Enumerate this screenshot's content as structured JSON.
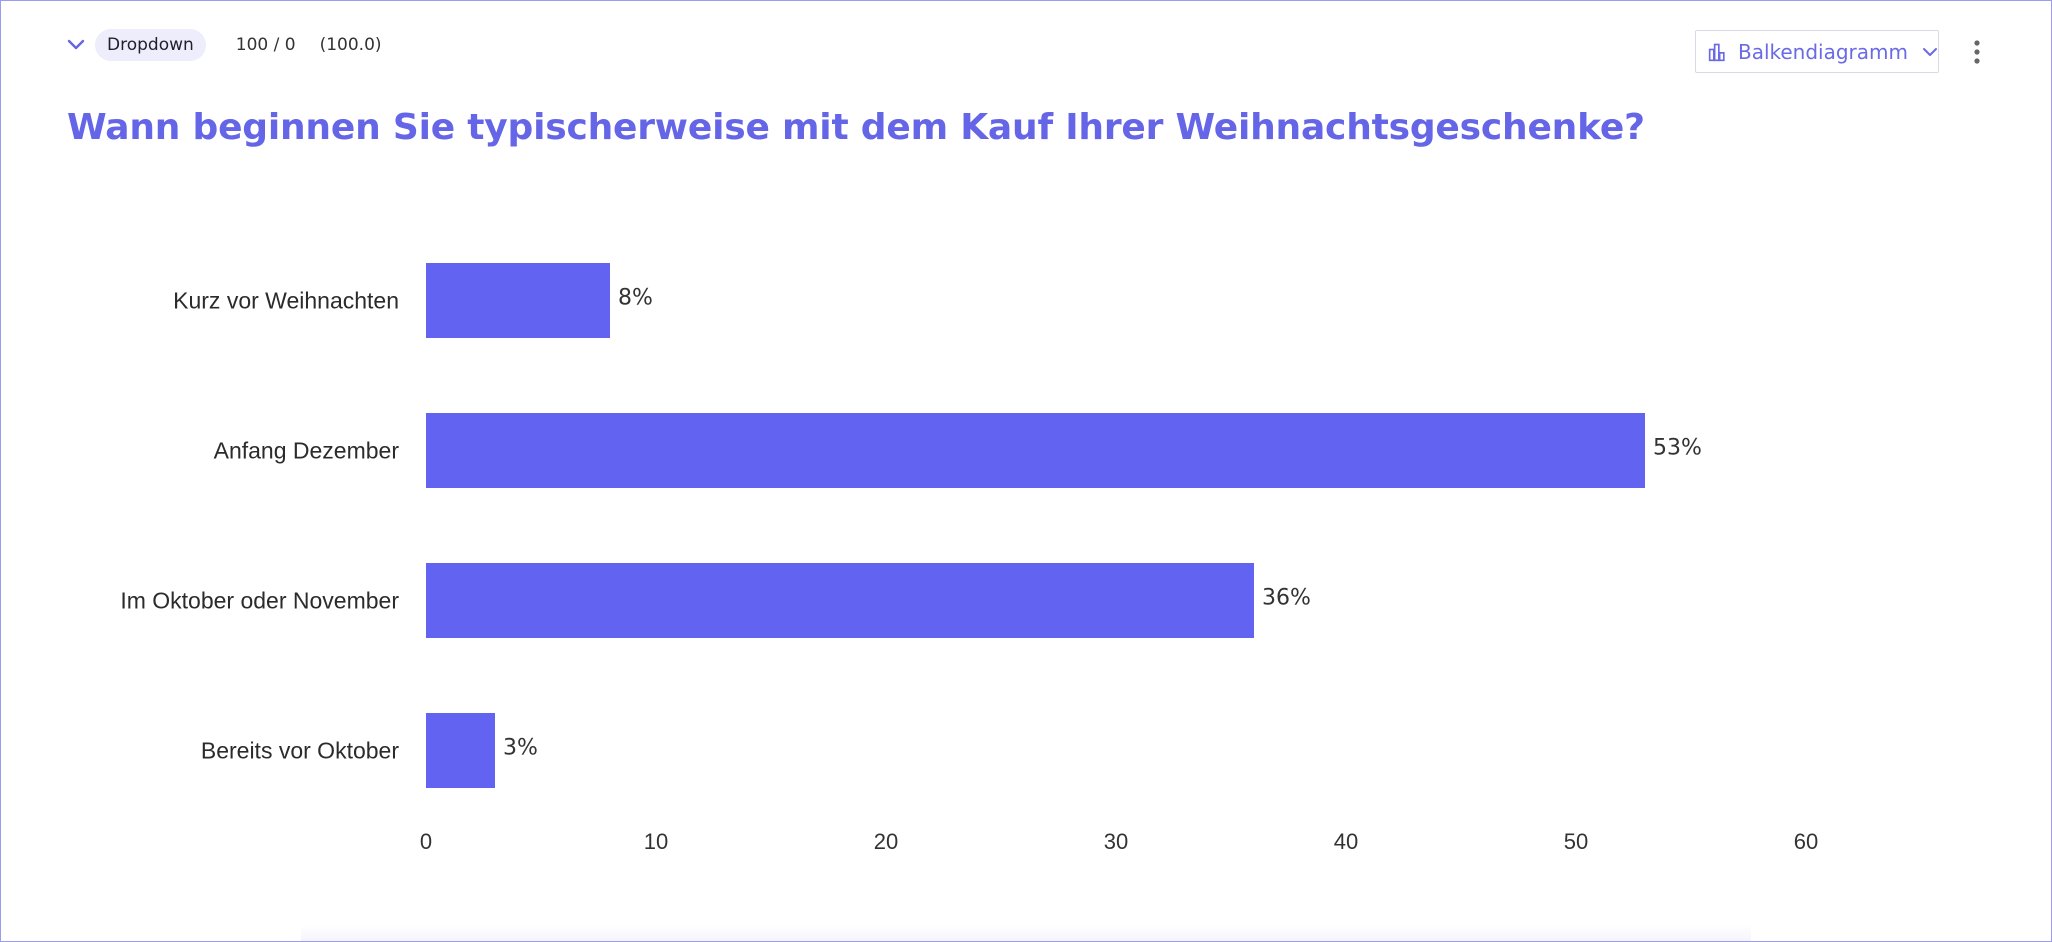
{
  "header": {
    "type_badge": "Dropdown",
    "response_count": "100 / 0",
    "response_pct": "(100.0)",
    "chart_type_label": "Balkendiagramm",
    "accent_color": "#6565e8"
  },
  "question": {
    "title": "Wann beginnen Sie typischerweise mit dem Kauf Ihrer Weihnachtsgeschenke?"
  },
  "icons": {
    "collapse": "chevron-down-icon",
    "chart_type": "bar-chart-icon",
    "select_arrow": "chevron-down-icon",
    "more": "more-vertical-icon"
  },
  "chart_data": {
    "type": "bar",
    "orientation": "horizontal",
    "categories": [
      "Kurz vor Weihnachten",
      "Anfang Dezember",
      "Im Oktober oder November",
      "Bereits vor Oktober"
    ],
    "values": [
      8,
      53,
      36,
      3
    ],
    "value_labels": [
      "8%",
      "53%",
      "36%",
      "3%"
    ],
    "xlim": [
      0,
      60
    ],
    "xticks": [
      0,
      10,
      20,
      30,
      40,
      50,
      60
    ],
    "tick_labels": [
      "0",
      "10",
      "20",
      "30",
      "40",
      "50",
      "60"
    ],
    "bar_color": "#6363f2",
    "grid": false,
    "legend": "none"
  }
}
